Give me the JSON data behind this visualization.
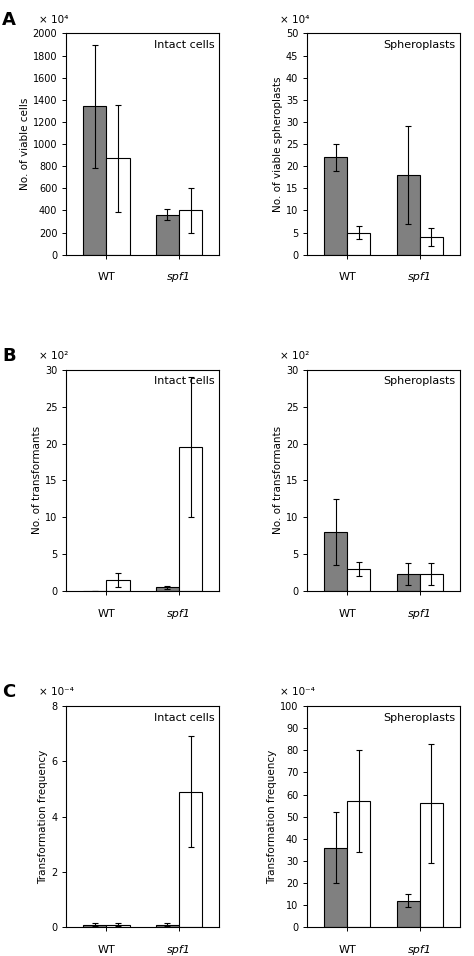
{
  "panel_A_left": {
    "title": "Intact cells",
    "ylabel": "No. of viable cells",
    "scale_label": "× 10⁴",
    "ylim": [
      0,
      2000
    ],
    "yticks": [
      0,
      200,
      400,
      600,
      800,
      1000,
      1200,
      1400,
      1600,
      1800,
      2000
    ],
    "groups": [
      "WT",
      "spf1"
    ],
    "gray_vals": [
      1340,
      360
    ],
    "gray_errs": [
      560,
      50
    ],
    "white_vals": [
      870,
      400
    ],
    "white_errs": [
      480,
      200
    ]
  },
  "panel_A_right": {
    "title": "Spheroplasts",
    "ylabel": "No. of viable spheroplasts",
    "scale_label": "× 10⁴",
    "ylim": [
      0,
      50
    ],
    "yticks": [
      0,
      5,
      10,
      15,
      20,
      25,
      30,
      35,
      40,
      45,
      50
    ],
    "groups": [
      "WT",
      "spf1"
    ],
    "gray_vals": [
      22,
      18
    ],
    "gray_errs": [
      3,
      11
    ],
    "white_vals": [
      5,
      4
    ],
    "white_errs": [
      1.5,
      2
    ]
  },
  "panel_B_left": {
    "title": "Intact cells",
    "ylabel": "No. of transformants",
    "scale_label": "× 10²",
    "ylim": [
      0,
      30
    ],
    "yticks": [
      0,
      5,
      10,
      15,
      20,
      25,
      30
    ],
    "groups": [
      "WT",
      "spf1"
    ],
    "gray_vals": [
      0,
      0.5
    ],
    "gray_errs": [
      0,
      0.2
    ],
    "white_vals": [
      1.5,
      19.5
    ],
    "white_errs": [
      1.0,
      9.5
    ]
  },
  "panel_B_right": {
    "title": "Spheroplasts",
    "ylabel": "No. of transformants",
    "scale_label": "× 10²",
    "ylim": [
      0,
      30
    ],
    "yticks": [
      0,
      5,
      10,
      15,
      20,
      25,
      30
    ],
    "groups": [
      "WT",
      "spf1"
    ],
    "gray_vals": [
      8,
      2.3
    ],
    "gray_errs": [
      4.5,
      1.5
    ],
    "white_vals": [
      3,
      2.3
    ],
    "white_errs": [
      1.0,
      1.5
    ]
  },
  "panel_C_left": {
    "title": "Intact cells",
    "ylabel": "Transformation frequency",
    "scale_label": "× 10⁻⁴",
    "ylim": [
      0,
      8
    ],
    "yticks": [
      0,
      2,
      4,
      6,
      8
    ],
    "groups": [
      "WT",
      "spf1"
    ],
    "gray_vals": [
      0.1,
      0.1
    ],
    "gray_errs": [
      0.05,
      0.05
    ],
    "white_vals": [
      0.1,
      4.9
    ],
    "white_errs": [
      0.05,
      2.0
    ]
  },
  "panel_C_right": {
    "title": "Spheroplasts",
    "ylabel": "Transformation frequency",
    "scale_label": "× 10⁻⁴",
    "ylim": [
      0,
      100
    ],
    "yticks": [
      0,
      10,
      20,
      30,
      40,
      50,
      60,
      70,
      80,
      90,
      100
    ],
    "groups": [
      "WT",
      "spf1"
    ],
    "gray_vals": [
      36,
      12
    ],
    "gray_errs": [
      16,
      3
    ],
    "white_vals": [
      57,
      56
    ],
    "white_errs": [
      23,
      27
    ]
  },
  "bar_width": 0.32,
  "gray_color": "#808080",
  "white_color": "#ffffff",
  "edge_color": "#000000",
  "figsize": [
    4.74,
    9.56
  ],
  "dpi": 100
}
